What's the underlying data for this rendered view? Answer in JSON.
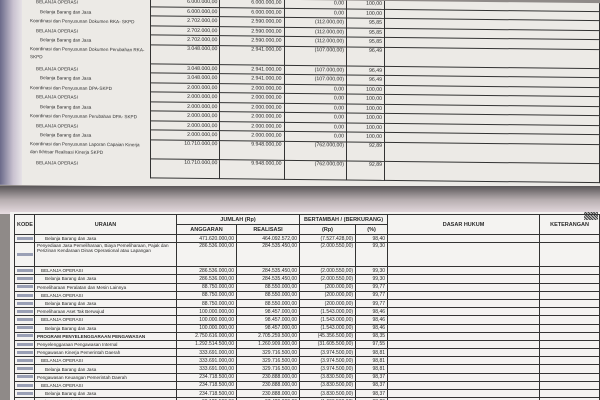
{
  "top_page": {
    "rows": [
      {
        "label": "BELANJA OPERASI",
        "level": 1,
        "anggaran": "6.000.000,00",
        "realisasi": "6.000.000,00",
        "selisih": "0,00",
        "persen": "100,00"
      },
      {
        "label": "Belanja Barang dan Jasa",
        "level": 2,
        "anggaran": "6.000.000,00",
        "realisasi": "6.000.000,00",
        "selisih": "0,00",
        "persen": "100,00"
      },
      {
        "label": "Koordinasi dan Penyusunan Dokumen RKA- SKPD",
        "level": 0,
        "anggaran": "2.702.000,00",
        "realisasi": "2.590.000,00",
        "selisih": "(112.000,00)",
        "persen": "95,85"
      },
      {
        "label": "BELANJA OPERASI",
        "level": 1,
        "anggaran": "2.702.000,00",
        "realisasi": "2.590.000,00",
        "selisih": "(112.000,00)",
        "persen": "95,85"
      },
      {
        "label": "Belanja Barang dan Jasa",
        "level": 2,
        "anggaran": "2.702.000,00",
        "realisasi": "2.590.000,00",
        "selisih": "(112.000,00)",
        "persen": "95,85"
      },
      {
        "label": "Koordinasi dan Penyusunan Dokumen Perubahan RKA-SKPD",
        "level": 0,
        "tall": true,
        "anggaran": "3.048.000,00",
        "realisasi": "2.941.000,00",
        "selisih": "(107.000,00)",
        "persen": "96,49"
      },
      {
        "label": "BELANJA OPERASI",
        "level": 1,
        "anggaran": "3.048.000,00",
        "realisasi": "2.941.000,00",
        "selisih": "(107.000,00)",
        "persen": "96,49"
      },
      {
        "label": "Belanja Barang dan Jasa",
        "level": 2,
        "anggaran": "3.048.000,00",
        "realisasi": "2.941.000,00",
        "selisih": "(107.000,00)",
        "persen": "96,49"
      },
      {
        "label": "Koordinasi dan Penyusunan DPA-SKPD",
        "level": 0,
        "anggaran": "2.000.000,00",
        "realisasi": "2.000.000,00",
        "selisih": "0,00",
        "persen": "100,00"
      },
      {
        "label": "BELANJA OPERASI",
        "level": 1,
        "anggaran": "2.000.000,00",
        "realisasi": "2.000.000,00",
        "selisih": "0,00",
        "persen": "100,00"
      },
      {
        "label": "Belanja Barang dan Jasa",
        "level": 2,
        "anggaran": "2.000.000,00",
        "realisasi": "2.000.000,00",
        "selisih": "0,00",
        "persen": "100,00"
      },
      {
        "label": "Koordinasi dan Penyusunan Perubahan DPA- SKPD",
        "level": 0,
        "anggaran": "2.000.000,00",
        "realisasi": "2.000.000,00",
        "selisih": "0,00",
        "persen": "100,00"
      },
      {
        "label": "BELANJA OPERASI",
        "level": 1,
        "anggaran": "2.000.000,00",
        "realisasi": "2.000.000,00",
        "selisih": "0,00",
        "persen": "100,00"
      },
      {
        "label": "Belanja Barang dan Jasa",
        "level": 2,
        "anggaran": "2.000.000,00",
        "realisasi": "2.000.000,00",
        "selisih": "0,00",
        "persen": "100,00"
      },
      {
        "label": "Koordinasi dan Penyusunan Laporan Capaian Kinerja dan Ikhtisar Realisasi Kinerja SKPD",
        "level": 0,
        "tall": true,
        "anggaran": "10.710.000,00",
        "realisasi": "9.948.000,00",
        "selisih": "(762.000,00)",
        "persen": "92,89"
      },
      {
        "label": "BELANJA OPERASI",
        "level": 1,
        "tall": true,
        "anggaran": "10.710.000,00",
        "realisasi": "9.948.000,00",
        "selisih": "(762.000,00)",
        "persen": "92,89"
      }
    ]
  },
  "bottom_page": {
    "headers": {
      "kode": "KODE",
      "uraian": "URAIAN",
      "jumlah": "JUMLAH (Rp)",
      "anggaran": "ANGGARAN",
      "realisasi": "REALISASI",
      "bertambah": "BERTAMBAH / (BERKURANG)",
      "rp": "(Rp)",
      "persen": "(%)",
      "dasar_hukum": "DASAR HUKUM",
      "keterangan": "KETERANGAN"
    },
    "rows": [
      {
        "label": "Belanja Barang dan Jasa",
        "level": 2,
        "anggaran": "471.620.000,00",
        "realisasi": "464.092.572,00",
        "selisih": "(7.527.428,00)",
        "persen": "98,40"
      },
      {
        "label": "Penyediaan Jasa Pemeliharaan, Biaya Pemeliharaan, Pajak dan Perizinan Kendaraan Dinas Operasional atau Lapangan",
        "level": 0,
        "tall": true,
        "anggaran": "286.536.000,00",
        "realisasi": "284.535.450,00",
        "selisih": "(2.000.550,00)",
        "persen": "99,30"
      },
      {
        "label": "BELANJA OPERASI",
        "level": 1,
        "anggaran": "286.536.000,00",
        "realisasi": "284.535.450,00",
        "selisih": "(2.000.550,00)",
        "persen": "99,30"
      },
      {
        "label": "Belanja Barang dan Jasa",
        "level": 2,
        "anggaran": "286.536.000,00",
        "realisasi": "284.535.450,00",
        "selisih": "(2.000.550,00)",
        "persen": "99,30"
      },
      {
        "label": "Pemeliharaan Peralatan dan Mesin Lainnya",
        "level": 0,
        "anggaran": "88.750.000,00",
        "realisasi": "88.550.000,00",
        "selisih": "(200.000,00)",
        "persen": "99,77"
      },
      {
        "label": "BELANJA OPERASI",
        "level": 1,
        "anggaran": "88.750.000,00",
        "realisasi": "88.550.000,00",
        "selisih": "(200.000,00)",
        "persen": "99,77"
      },
      {
        "label": "Belanja Barang dan Jasa",
        "level": 2,
        "anggaran": "88.750.000,00",
        "realisasi": "88.550.000,00",
        "selisih": "(200.000,00)",
        "persen": "99,77"
      },
      {
        "label": "Pemeliharaan Aset Tak Berwujud",
        "level": 0,
        "anggaran": "100.000.000,00",
        "realisasi": "98.457.000,00",
        "selisih": "(1.543.000,00)",
        "persen": "98,46"
      },
      {
        "label": "BELANJA OPERASI",
        "level": 1,
        "anggaran": "100.000.000,00",
        "realisasi": "98.457.000,00",
        "selisih": "(1.543.000,00)",
        "persen": "98,46"
      },
      {
        "label": "Belanja Barang dan Jasa",
        "level": 2,
        "anggaran": "100.000.000,00",
        "realisasi": "98.457.000,00",
        "selisih": "(1.543.000,00)",
        "persen": "98,46"
      },
      {
        "label": "PROGRAM PENYELENGGARAAN PENGAWASAN",
        "level": 0,
        "anggaran": "2.750.616.000,00",
        "realisasi": "2.705.259.500,00",
        "selisih": "(45.356.500,00)",
        "persen": "98,35"
      },
      {
        "label": "Penyelenggaraan Pengawasan Internal",
        "level": 0,
        "anggaran": "1.292.514.500,00",
        "realisasi": "1.260.909.000,00",
        "selisih": "(31.605.500,00)",
        "persen": "97,55"
      },
      {
        "label": "Pengawasan Kinerja Pemerintah Daerah",
        "level": 0,
        "anggaran": "333.691.000,00",
        "realisasi": "329.716.500,00",
        "selisih": "(3.974.500,00)",
        "persen": "98,81"
      },
      {
        "label": "BELANJA OPERASI",
        "level": 1,
        "anggaran": "333.691.000,00",
        "realisasi": "329.716.500,00",
        "selisih": "(3.974.500,00)",
        "persen": "98,81"
      },
      {
        "label": "Belanja Barang dan Jasa",
        "level": 2,
        "anggaran": "333.691.000,00",
        "realisasi": "329.716.500,00",
        "selisih": "(3.974.500,00)",
        "persen": "98,81"
      },
      {
        "label": "Pengawasan Keuangan Pemerintah Daerah",
        "level": 0,
        "anggaran": "234.718.500,00",
        "realisasi": "230.888.000,00",
        "selisih": "(3.830.500,00)",
        "persen": "98,37"
      },
      {
        "label": "BELANJA OPERASI",
        "level": 1,
        "anggaran": "234.718.500,00",
        "realisasi": "230.888.000,00",
        "selisih": "(3.830.500,00)",
        "persen": "98,37"
      },
      {
        "label": "Belanja Barang dan Jasa",
        "level": 2,
        "anggaran": "234.718.500,00",
        "realisasi": "230.888.000,00",
        "selisih": "(3.830.500,00)",
        "persen": "98,37"
      },
      {
        "label": "Reviu Laporan Kinerja",
        "level": 0,
        "anggaran": "99.125.500,00",
        "realisasi": "97.429.000,00",
        "selisih": "(1.696.500,00)",
        "persen": "98,29"
      }
    ]
  }
}
